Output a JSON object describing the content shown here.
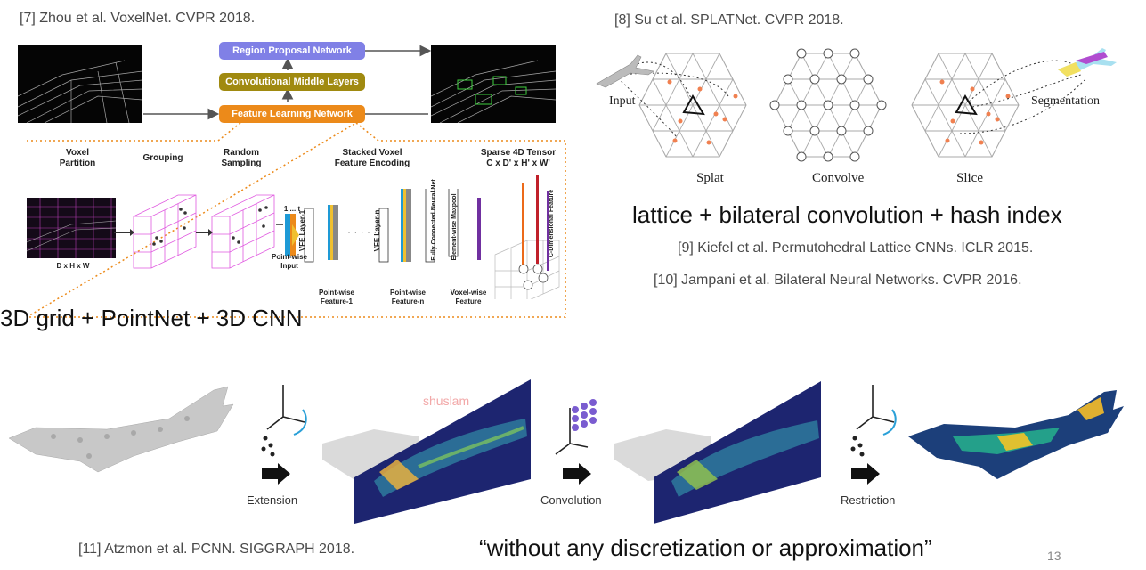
{
  "slide_number": "13",
  "voxelnet": {
    "citation": "[7] Zhou et al. VoxelNet. CVPR 2018.",
    "blocks": {
      "rpn": "Region Proposal Network",
      "cml": "Convolutional Middle Layers",
      "fln": "Feature Learning Network"
    },
    "stages": {
      "voxel_partition": "Voxel\nPartition",
      "grouping": "Grouping",
      "random_sampling": "Random\nSampling",
      "stacked": "Stacked Voxel\nFeature Encoding",
      "sparse": "Sparse 4D Tensor\nC x D' x H' x W'"
    },
    "dims": "D x H x W",
    "vfe1": "VFE Layer-1",
    "vfen": "VFE Layer-n",
    "fcnn": "Fully Connected Neural Net",
    "ewmp": "Element-wise Maxpool",
    "cdim": "C-Dimensional Feature",
    "dots_1t": "1 ... t",
    "pw_input": "Point-wise\nInput",
    "pw_f1": "Point-wise\nFeature-1",
    "pw_fn": "Point-wise\nFeature-n",
    "voxel_feat": "Voxel-wise\nFeature",
    "caption": "3D grid + PointNet + 3D CNN",
    "colors": {
      "rpn": "#8080e6",
      "cml": "#a08a10",
      "fln": "#ec8a1a"
    }
  },
  "splatnet": {
    "citation": "[8] Su et al. SPLATNet. CVPR 2018.",
    "input": "Input",
    "segmentation": "Segmentation",
    "splat": "Splat",
    "convolve": "Convolve",
    "slice": "Slice",
    "caption": "lattice + bilateral convolution + hash index",
    "ref1": "[9] Kiefel et al. Permutohedral Lattice CNNs. ICLR 2015.",
    "ref2": "[10] Jampani et al. Bilateral Neural Networks. CVPR 2016."
  },
  "pcnn": {
    "extension": "Extension",
    "convolution": "Convolution",
    "restriction": "Restriction",
    "watermark": "shuslam",
    "citation": "[11] Atzmon  et al. PCNN. SIGGRAPH 2018.",
    "quote": "“without any discretization or approximation”"
  }
}
